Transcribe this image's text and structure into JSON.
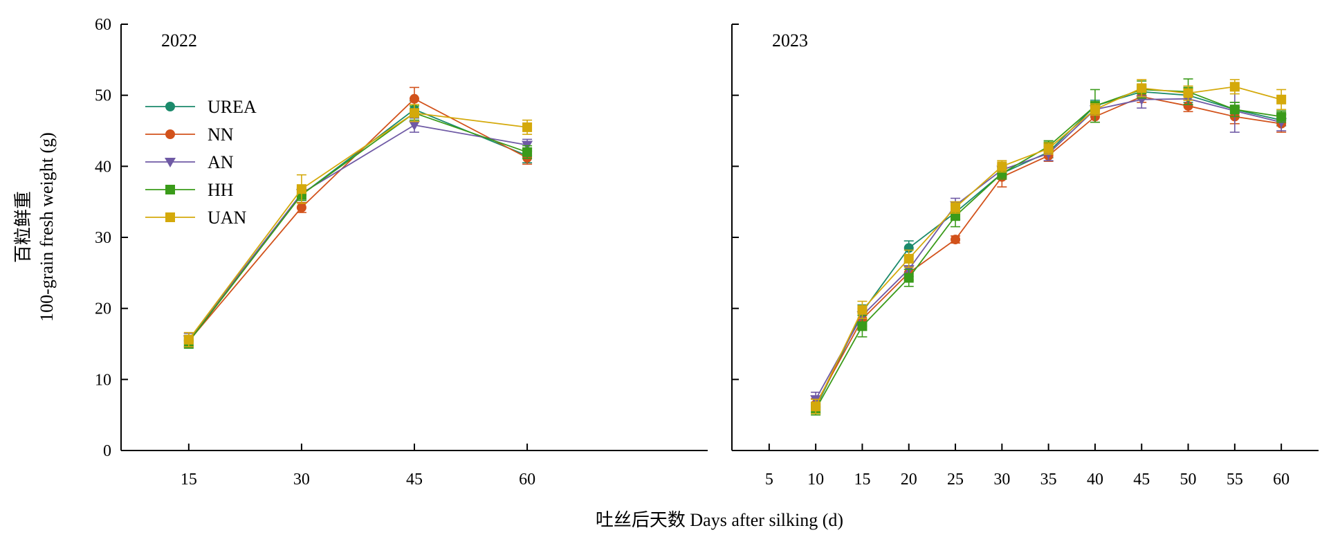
{
  "chart_data": [
    {
      "type": "line",
      "panel_label": "2022",
      "x": [
        15,
        30,
        45,
        60
      ],
      "xticks": [
        15,
        30,
        45,
        60
      ],
      "xlim": [
        6,
        84
      ],
      "ylim": [
        0,
        60
      ],
      "yticks": [
        0,
        10,
        20,
        30,
        40,
        50,
        60
      ],
      "ylabel_cn": "百粒鲜重",
      "ylabel": "100-grain fresh weight (g)",
      "legend": "upper-left",
      "series": [
        {
          "name": "UREA",
          "color": "#1b8a6b",
          "marker": "circle",
          "values": [
            15.5,
            36.0,
            48.0,
            41.5
          ],
          "errors": [
            1.0,
            0.8,
            1.2,
            1.0
          ]
        },
        {
          "name": "NN",
          "color": "#d2521b",
          "marker": "circle",
          "values": [
            15.4,
            34.2,
            49.5,
            41.2
          ],
          "errors": [
            0.8,
            0.7,
            1.6,
            0.9
          ]
        },
        {
          "name": "AN",
          "color": "#6f5aa5",
          "marker": "triangle",
          "values": [
            15.6,
            36.2,
            45.8,
            43.0
          ],
          "errors": [
            0.9,
            0.8,
            1.0,
            0.8
          ]
        },
        {
          "name": "HH",
          "color": "#3a9b1a",
          "marker": "square",
          "values": [
            15.3,
            36.0,
            47.5,
            42.0
          ],
          "errors": [
            0.9,
            0.8,
            1.0,
            0.9
          ]
        },
        {
          "name": "UAN",
          "color": "#d4a90b",
          "marker": "square",
          "values": [
            15.6,
            36.8,
            47.5,
            45.5
          ],
          "errors": [
            1.0,
            2.0,
            1.2,
            1.0
          ]
        }
      ]
    },
    {
      "type": "line",
      "panel_label": "2023",
      "x": [
        10,
        15,
        20,
        25,
        30,
        35,
        40,
        45,
        50,
        55,
        60
      ],
      "xticks": [
        5,
        10,
        15,
        20,
        25,
        30,
        35,
        40,
        45,
        50,
        55,
        60
      ],
      "xlim": [
        1,
        64
      ],
      "ylim": [
        0,
        60
      ],
      "series": [
        {
          "name": "UREA",
          "color": "#1b8a6b",
          "marker": "circle",
          "values": [
            6.0,
            19.5,
            28.5,
            33.5,
            39.0,
            42.0,
            48.5,
            50.5,
            50.0,
            48.0,
            46.5
          ],
          "errors": [
            0.8,
            1.0,
            1.0,
            1.0,
            0.8,
            0.8,
            0.8,
            1.0,
            1.0,
            1.0,
            0.8
          ]
        },
        {
          "name": "NN",
          "color": "#d2521b",
          "marker": "circle",
          "values": [
            6.5,
            18.5,
            25.0,
            29.7,
            38.5,
            41.5,
            47.0,
            49.8,
            48.5,
            47.0,
            46.0
          ],
          "errors": [
            0.8,
            1.0,
            1.0,
            0.5,
            1.4,
            0.8,
            0.8,
            0.8,
            0.8,
            1.0,
            1.2
          ]
        },
        {
          "name": "AN",
          "color": "#6f5aa5",
          "marker": "triangle",
          "values": [
            7.2,
            19.0,
            25.5,
            34.5,
            39.5,
            41.8,
            48.0,
            49.4,
            49.5,
            47.8,
            46.2
          ],
          "errors": [
            1.0,
            1.0,
            1.0,
            1.0,
            0.8,
            1.0,
            0.8,
            1.2,
            0.8,
            3.0,
            1.2
          ]
        },
        {
          "name": "HH",
          "color": "#3a9b1a",
          "marker": "square",
          "values": [
            5.8,
            17.5,
            24.3,
            33.0,
            39.0,
            42.8,
            48.5,
            50.8,
            50.5,
            48.0,
            47.0
          ],
          "errors": [
            0.8,
            1.5,
            1.2,
            1.5,
            0.8,
            0.8,
            2.3,
            1.2,
            1.8,
            1.0,
            0.8
          ]
        },
        {
          "name": "UAN",
          "color": "#d4a90b",
          "marker": "square",
          "values": [
            6.2,
            19.8,
            27.0,
            34.2,
            40.0,
            42.5,
            48.0,
            51.0,
            50.3,
            51.2,
            49.4
          ],
          "errors": [
            1.0,
            1.2,
            1.2,
            0.8,
            0.8,
            0.8,
            0.8,
            1.2,
            1.0,
            1.0,
            1.4
          ]
        }
      ]
    }
  ],
  "xlabel": "吐丝后天数 Days after silking (d)"
}
